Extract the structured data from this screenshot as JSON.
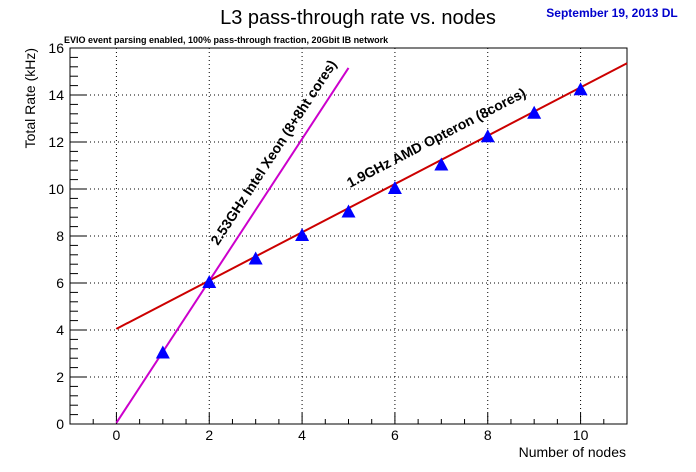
{
  "header": {
    "date_label": "September 19, 2013 DL",
    "date_color": "#0000cc"
  },
  "chart_data": {
    "type": "scatter",
    "title": "L3 pass-through rate vs. nodes",
    "subtitle": "EVIO event parsing enabled,   100% pass-through fraction,   20Gbit IB network",
    "xlabel": "Number of nodes",
    "ylabel": "Total Rate (kHz)",
    "xlim": [
      -1,
      11
    ],
    "ylim": [
      0,
      16
    ],
    "x_ticks": [
      0,
      2,
      4,
      6,
      8,
      10
    ],
    "y_ticks": [
      0,
      2,
      4,
      6,
      8,
      10,
      12,
      14,
      16
    ],
    "grid": true,
    "grid_style": "dotted",
    "series": [
      {
        "name": "",
        "marker": "triangle",
        "color": "#0000ff",
        "x": [
          1,
          2,
          3,
          4,
          5,
          6,
          7,
          8,
          9,
          10
        ],
        "y": [
          3.0,
          6.0,
          7.0,
          8.0,
          9.0,
          10.0,
          11.0,
          12.2,
          13.2,
          14.2
        ]
      }
    ],
    "fit_lines": [
      {
        "name": "",
        "color": "#cc0000",
        "x": [
          0,
          11
        ],
        "y": [
          4.05,
          15.35
        ]
      },
      {
        "name": "",
        "color": "#cc00cc",
        "x": [
          0,
          5
        ],
        "y": [
          0.05,
          15.15
        ]
      }
    ],
    "annotations": [
      {
        "text": "2.53GHz Intel Xeon (8+8ht cores)"
      },
      {
        "text": "1.9GHz AMD Opteron (8cores)"
      }
    ]
  }
}
